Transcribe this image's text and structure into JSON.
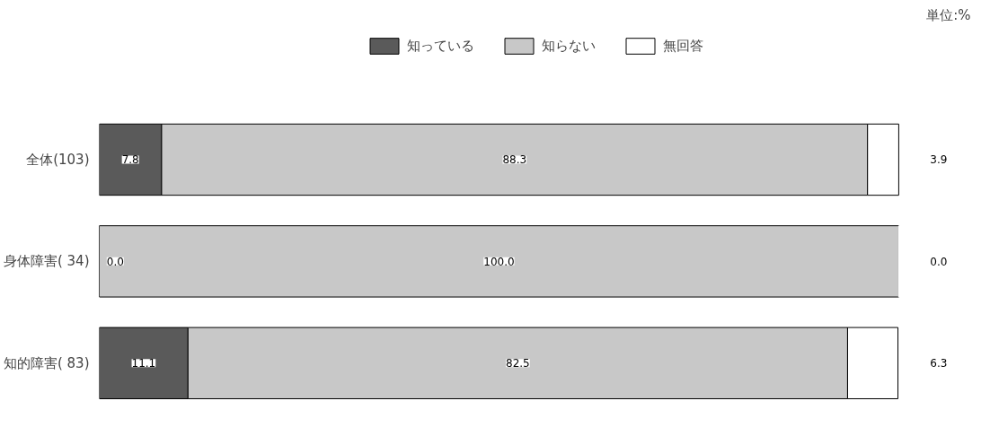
{
  "chart_data": {
    "type": "bar",
    "orientation": "horizontal",
    "stacked": true,
    "categories": [
      "全体(103)",
      "身体障害( 34)",
      "知的障害( 83)"
    ],
    "series": [
      {
        "name": "知っている",
        "color": "#5a5a5a",
        "values": [
          7.8,
          0.0,
          11.1
        ],
        "value_labels": [
          "7.8",
          "0.0",
          "11.1"
        ]
      },
      {
        "name": "知らない",
        "color": "#c8c8c8",
        "values": [
          88.3,
          100.0,
          82.5
        ],
        "value_labels": [
          "88.3",
          "100.0",
          "82.5"
        ]
      },
      {
        "name": "無回答",
        "color": "#ffffff",
        "values": [
          3.9,
          0.0,
          6.3
        ],
        "value_labels": [
          "3.9",
          "0.0",
          "6.3"
        ]
      }
    ],
    "legend": "top",
    "tick_labels": "y",
    "annotations": [
      "単位:%"
    ]
  }
}
